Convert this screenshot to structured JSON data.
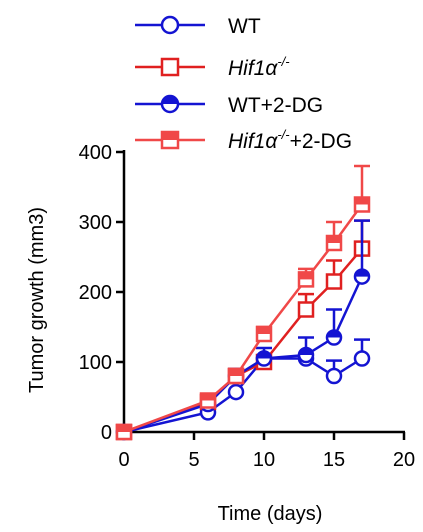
{
  "chart_data": {
    "type": "line",
    "title": "",
    "xlabel": "Time (days)",
    "ylabel": "Tumor growth (mm3)",
    "xlim": [
      0,
      20
    ],
    "ylim": [
      0,
      400
    ],
    "xticks": [
      0,
      5,
      10,
      15,
      20
    ],
    "yticks": [
      0,
      100,
      200,
      300,
      400
    ],
    "grid": false,
    "legend_position": "top",
    "series": [
      {
        "name": "WT",
        "name_parts": [
          {
            "text": "WT",
            "italic": false,
            "sup": false
          }
        ],
        "color": "#1414d2",
        "marker": "circle-open",
        "x": [
          0,
          6,
          8,
          10,
          13,
          15,
          17
        ],
        "y": [
          0,
          28,
          57,
          105,
          105,
          80,
          105
        ],
        "err": [
          0,
          0,
          0,
          0,
          0,
          22,
          27
        ]
      },
      {
        "name": "Hif1α-/-",
        "name_parts": [
          {
            "text": "Hif1α",
            "italic": true,
            "sup": false
          },
          {
            "text": "-/-",
            "italic": true,
            "sup": true
          }
        ],
        "color": "#e02020",
        "marker": "square-open",
        "x": [
          0,
          6,
          8,
          10,
          13,
          15,
          17
        ],
        "y": [
          0,
          43,
          80,
          100,
          175,
          215,
          262
        ],
        "err": [
          0,
          8,
          10,
          0,
          22,
          30,
          40
        ]
      },
      {
        "name": "WT+2-DG",
        "name_parts": [
          {
            "text": "WT+2-DG",
            "italic": false,
            "sup": false
          }
        ],
        "color": "#1414d2",
        "marker": "circle-half",
        "x": [
          0,
          6,
          8,
          10,
          13,
          15,
          17
        ],
        "y": [
          0,
          40,
          80,
          105,
          110,
          135,
          222
        ],
        "err": [
          0,
          5,
          10,
          15,
          25,
          40,
          80
        ]
      },
      {
        "name": "Hif1α-/-+2-DG",
        "name_parts": [
          {
            "text": "Hif1α",
            "italic": true,
            "sup": false
          },
          {
            "text": "-/-",
            "italic": true,
            "sup": true
          },
          {
            "text": "+2-DG",
            "italic": false,
            "sup": false
          }
        ],
        "color": "#f04848",
        "marker": "square-half",
        "x": [
          0,
          6,
          8,
          10,
          13,
          15,
          17
        ],
        "y": [
          0,
          45,
          80,
          140,
          218,
          270,
          325
        ],
        "err": [
          0,
          5,
          10,
          10,
          15,
          30,
          55
        ]
      }
    ]
  }
}
